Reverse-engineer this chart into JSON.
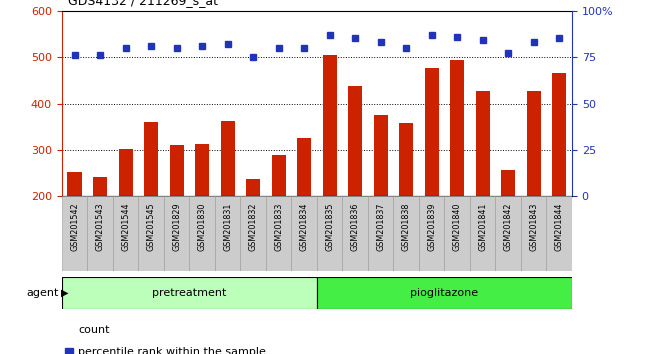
{
  "title": "GDS4132 / 211269_s_at",
  "samples": [
    "GSM201542",
    "GSM201543",
    "GSM201544",
    "GSM201545",
    "GSM201829",
    "GSM201830",
    "GSM201831",
    "GSM201832",
    "GSM201833",
    "GSM201834",
    "GSM201835",
    "GSM201836",
    "GSM201837",
    "GSM201838",
    "GSM201839",
    "GSM201840",
    "GSM201841",
    "GSM201842",
    "GSM201843",
    "GSM201844"
  ],
  "counts": [
    252,
    242,
    302,
    360,
    310,
    312,
    363,
    237,
    290,
    325,
    505,
    437,
    375,
    358,
    477,
    493,
    428,
    257,
    427,
    465
  ],
  "percentiles": [
    76,
    76,
    80,
    81,
    80,
    81,
    82,
    75,
    80,
    80,
    87,
    85,
    83,
    80,
    87,
    86,
    84,
    77,
    83,
    85
  ],
  "bar_color": "#cc2200",
  "dot_color": "#2233bb",
  "pretreat_color": "#bbffbb",
  "pioglit_color": "#44ee44",
  "pretreat_n": 10,
  "pioglit_n": 10,
  "ylim_left": [
    200,
    600
  ],
  "ylim_right": [
    0,
    100
  ],
  "yticks_left": [
    200,
    300,
    400,
    500,
    600
  ],
  "yticks_right": [
    0,
    25,
    50,
    75,
    100
  ],
  "xtick_bg": "#cccccc",
  "plot_bg": "#ffffff",
  "black_bar_color": "#111111"
}
